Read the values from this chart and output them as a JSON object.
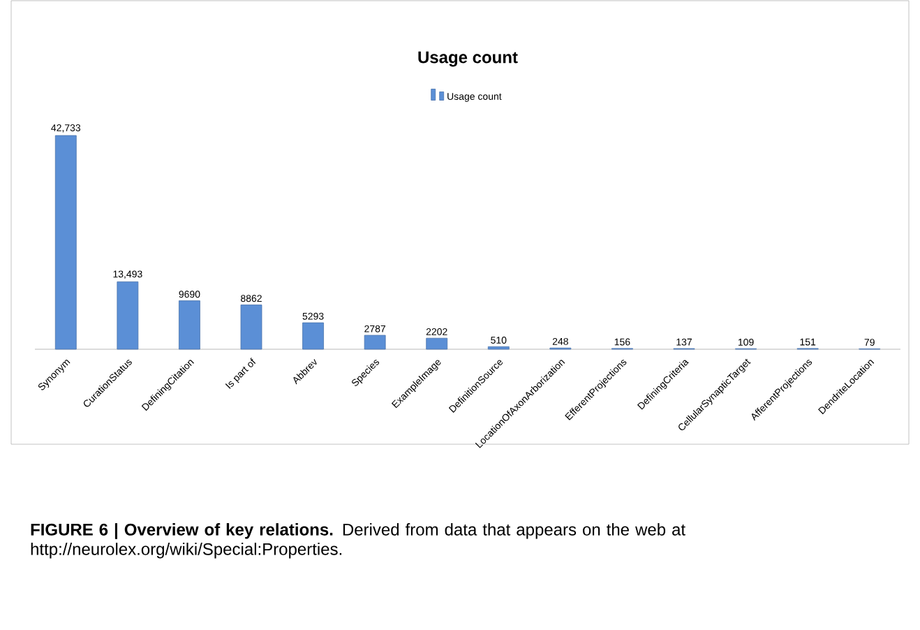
{
  "chart_data": {
    "type": "bar",
    "title": "Usage count",
    "categories": [
      "Synonym",
      "CurationStatus",
      "DefiningCitation",
      "Is part of",
      "Abbrev",
      "Species",
      "ExampleImage",
      "DefinitionSource",
      "LocationOfAxonArborization",
      "EfferentProjections",
      "DefiningCriteria",
      "CellularSynapticTarget",
      "AfferentProjections",
      "DendriteLocation"
    ],
    "series": [
      {
        "name": "Usage count",
        "color": "#5b8fd6",
        "values": [
          42733,
          13493,
          9690,
          8862,
          5293,
          2787,
          2202,
          510,
          248,
          156,
          137,
          109,
          151,
          79
        ],
        "value_labels": [
          "42,733",
          "13,493",
          "9690",
          "8862",
          "5293",
          "2787",
          "2202",
          "510",
          "248",
          "156",
          "137",
          "109",
          "151",
          "79"
        ]
      }
    ],
    "legend": "top",
    "annotations": [
      "**FIGURE 6 | Overview of key relations.** Derived from data that appears on the web at http://neurolex.org/wiki/Special:Properties."
    ]
  }
}
